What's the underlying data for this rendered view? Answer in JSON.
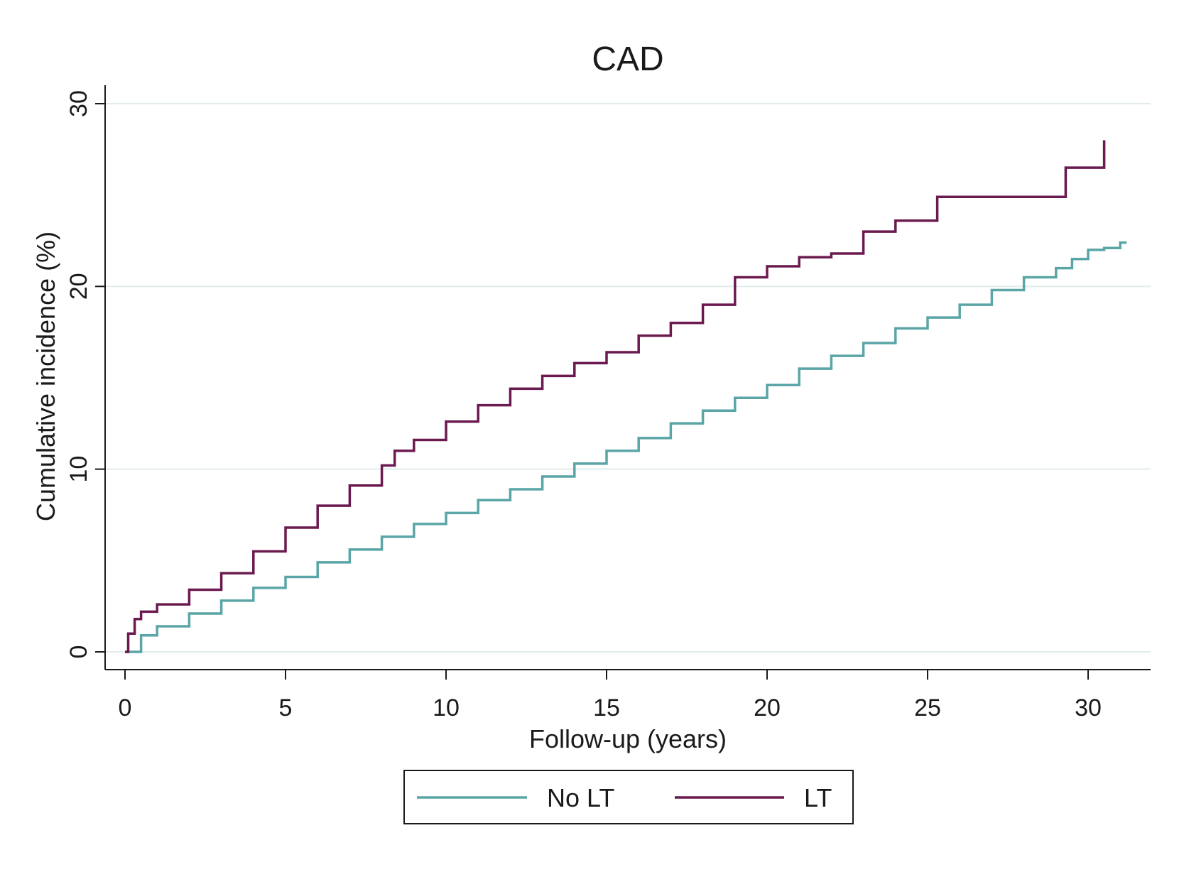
{
  "chart_data": {
    "type": "line",
    "step": true,
    "title": "CAD",
    "xlabel": "Follow-up (years)",
    "ylabel": "Cumulative incidence (%)",
    "xlim": [
      0,
      31.5
    ],
    "ylim": [
      0,
      30
    ],
    "xticks": [
      0,
      5,
      10,
      15,
      20,
      25,
      30
    ],
    "yticks": [
      0,
      10,
      20,
      30
    ],
    "grid": "horizontal",
    "legend_position": "bottom",
    "series": [
      {
        "name": "No LT",
        "color": "#5aa5a6",
        "points": [
          [
            0,
            0
          ],
          [
            0.5,
            0.9
          ],
          [
            1,
            1.4
          ],
          [
            2,
            2.1
          ],
          [
            3,
            2.8
          ],
          [
            4,
            3.5
          ],
          [
            5,
            4.1
          ],
          [
            6,
            4.9
          ],
          [
            7,
            5.6
          ],
          [
            8,
            6.3
          ],
          [
            9,
            7.0
          ],
          [
            10,
            7.6
          ],
          [
            11,
            8.3
          ],
          [
            12,
            8.9
          ],
          [
            13,
            9.6
          ],
          [
            14,
            10.3
          ],
          [
            15,
            11.0
          ],
          [
            16,
            11.7
          ],
          [
            17,
            12.5
          ],
          [
            18,
            13.2
          ],
          [
            19,
            13.9
          ],
          [
            20,
            14.6
          ],
          [
            21,
            15.5
          ],
          [
            22,
            16.2
          ],
          [
            23,
            16.9
          ],
          [
            24,
            17.7
          ],
          [
            25,
            18.3
          ],
          [
            26,
            19.0
          ],
          [
            27,
            19.8
          ],
          [
            28,
            20.5
          ],
          [
            29,
            21.0
          ],
          [
            29.5,
            21.5
          ],
          [
            30,
            22.0
          ],
          [
            30.5,
            22.1
          ],
          [
            31,
            22.4
          ],
          [
            31.2,
            22.4
          ]
        ]
      },
      {
        "name": "LT",
        "color": "#6b1a4f",
        "points": [
          [
            0,
            0
          ],
          [
            0.1,
            1.0
          ],
          [
            0.3,
            1.8
          ],
          [
            0.5,
            2.2
          ],
          [
            1,
            2.6
          ],
          [
            2,
            3.4
          ],
          [
            3,
            4.3
          ],
          [
            4,
            5.5
          ],
          [
            5,
            6.8
          ],
          [
            6,
            8.0
          ],
          [
            7,
            9.1
          ],
          [
            8,
            10.2
          ],
          [
            8.4,
            11.0
          ],
          [
            9,
            11.6
          ],
          [
            10,
            12.6
          ],
          [
            11,
            13.5
          ],
          [
            12,
            14.4
          ],
          [
            13,
            15.1
          ],
          [
            14,
            15.8
          ],
          [
            15,
            16.4
          ],
          [
            16,
            17.3
          ],
          [
            17,
            18.0
          ],
          [
            18,
            19.0
          ],
          [
            19,
            20.5
          ],
          [
            20,
            21.1
          ],
          [
            21,
            21.6
          ],
          [
            22,
            21.8
          ],
          [
            23,
            23.0
          ],
          [
            24,
            23.6
          ],
          [
            25.3,
            23.7
          ],
          [
            25.3,
            24.9
          ],
          [
            29.3,
            24.9
          ],
          [
            29.3,
            26.5
          ],
          [
            30.5,
            26.5
          ],
          [
            30.5,
            28.0
          ]
        ]
      }
    ]
  }
}
